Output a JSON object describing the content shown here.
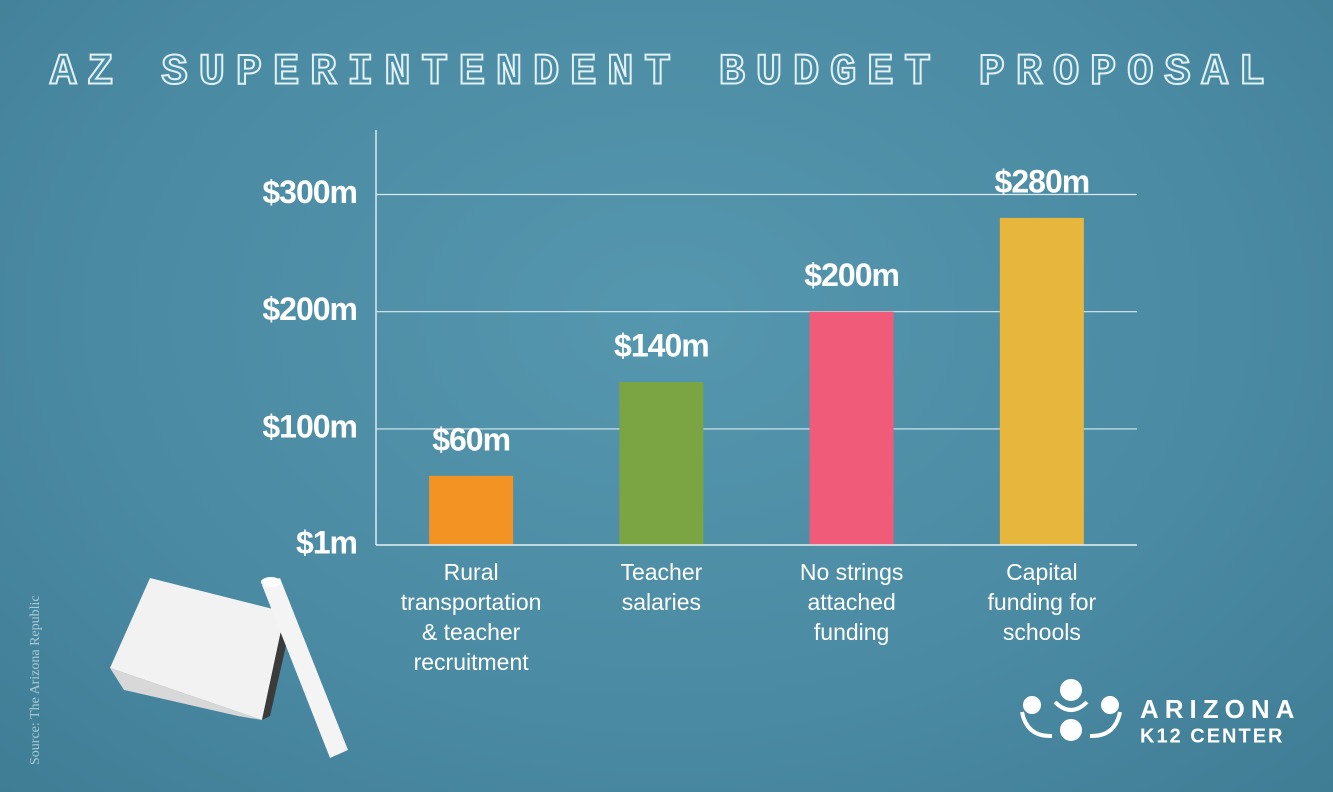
{
  "chart_data": {
    "type": "bar",
    "title": "AZ SUPERINTENDENT BUDGET PROPOSAL",
    "categories": [
      "Rural\ntransportation\n& teacher\nrecruitment",
      "Teacher\nsalaries",
      "No strings\nattached\nfunding",
      "Capital\nfunding for\nschools"
    ],
    "values": [
      60,
      140,
      200,
      280
    ],
    "value_labels": [
      "$60m",
      "$140m",
      "$200m",
      "$280m"
    ],
    "colors": [
      "#f39323",
      "#7aa542",
      "#ef5b78",
      "#e6b73c"
    ],
    "ylim": [
      1,
      355
    ],
    "yticks": [
      {
        "value": 1,
        "label": "$1m"
      },
      {
        "value": 100,
        "label": "$100m"
      },
      {
        "value": 200,
        "label": "$200m"
      },
      {
        "value": 300,
        "label": "$300m"
      }
    ],
    "grid": true,
    "source": "Source: The Arizona Republic"
  },
  "logo": {
    "line1": "ARIZONA",
    "line2": "K12 CENTER"
  }
}
